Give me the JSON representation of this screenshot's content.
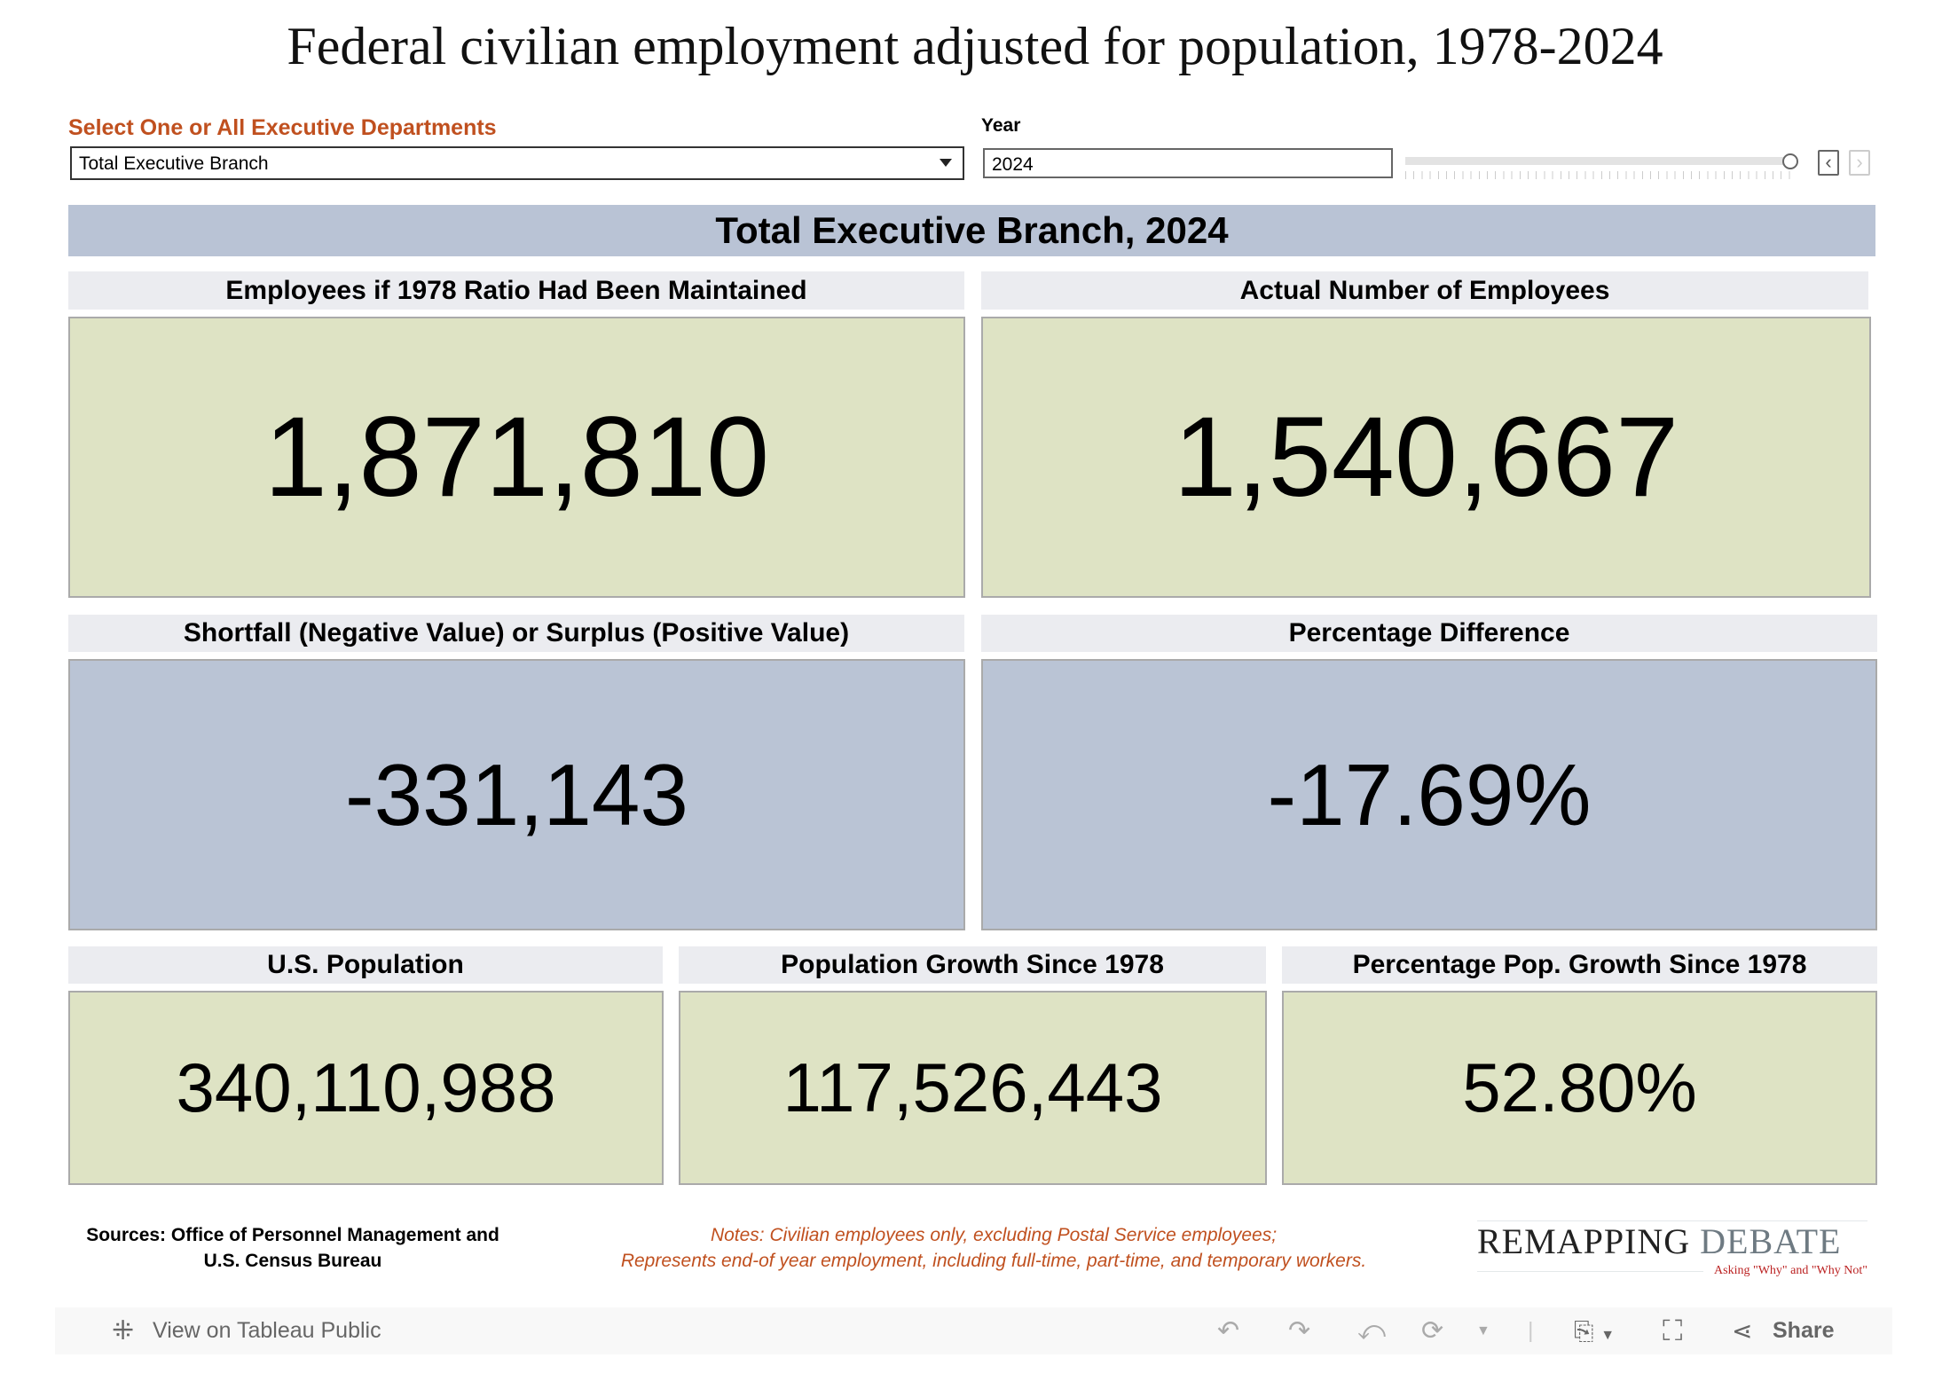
{
  "title": "Federal civilian employment adjusted for population, 1978-2024",
  "controls": {
    "dept_label": "Select One or All Executive Departments",
    "dept_value": "Total Executive Branch",
    "year_label": "Year",
    "year_value": "2024",
    "slider_position": 1.0
  },
  "band_title": "Total Executive Branch, 2024",
  "metrics": [
    {
      "label": "Employees if 1978 Ratio Had Been Maintained",
      "value": "1,871,810"
    },
    {
      "label": "Actual Number of Employees",
      "value": "1,540,667"
    },
    {
      "label": "Shortfall (Negative Value) or Surplus (Positive Value)",
      "value": "-331,143"
    },
    {
      "label": "Percentage Difference",
      "value": "-17.69%"
    },
    {
      "label": "U.S. Population",
      "value": "340,110,988"
    },
    {
      "label": "Population Growth Since 1978",
      "value": "117,526,443"
    },
    {
      "label": "Percentage Pop. Growth Since 1978",
      "value": "52.80%"
    }
  ],
  "footer": {
    "sources_1": "Sources: Office of Personnel Management and",
    "sources_2": "U.S. Census Bureau",
    "notes_1": "Notes: Civilian employees only, excluding Postal Service employees;",
    "notes_2": "Represents end-of year employment, including full-time, part-time, and temporary workers.",
    "logo_1": "REMAPPING",
    "logo_2": "DEBATE",
    "logo_tag": "Asking \"Why\" and \"Why Not\""
  },
  "toolbar": {
    "view_label": "View on Tableau Public",
    "share_label": "Share"
  },
  "colors": {
    "green": "#dee3c4",
    "blue": "#bac4d5",
    "band": "#b9c3d5",
    "accent": "#c0501f"
  }
}
